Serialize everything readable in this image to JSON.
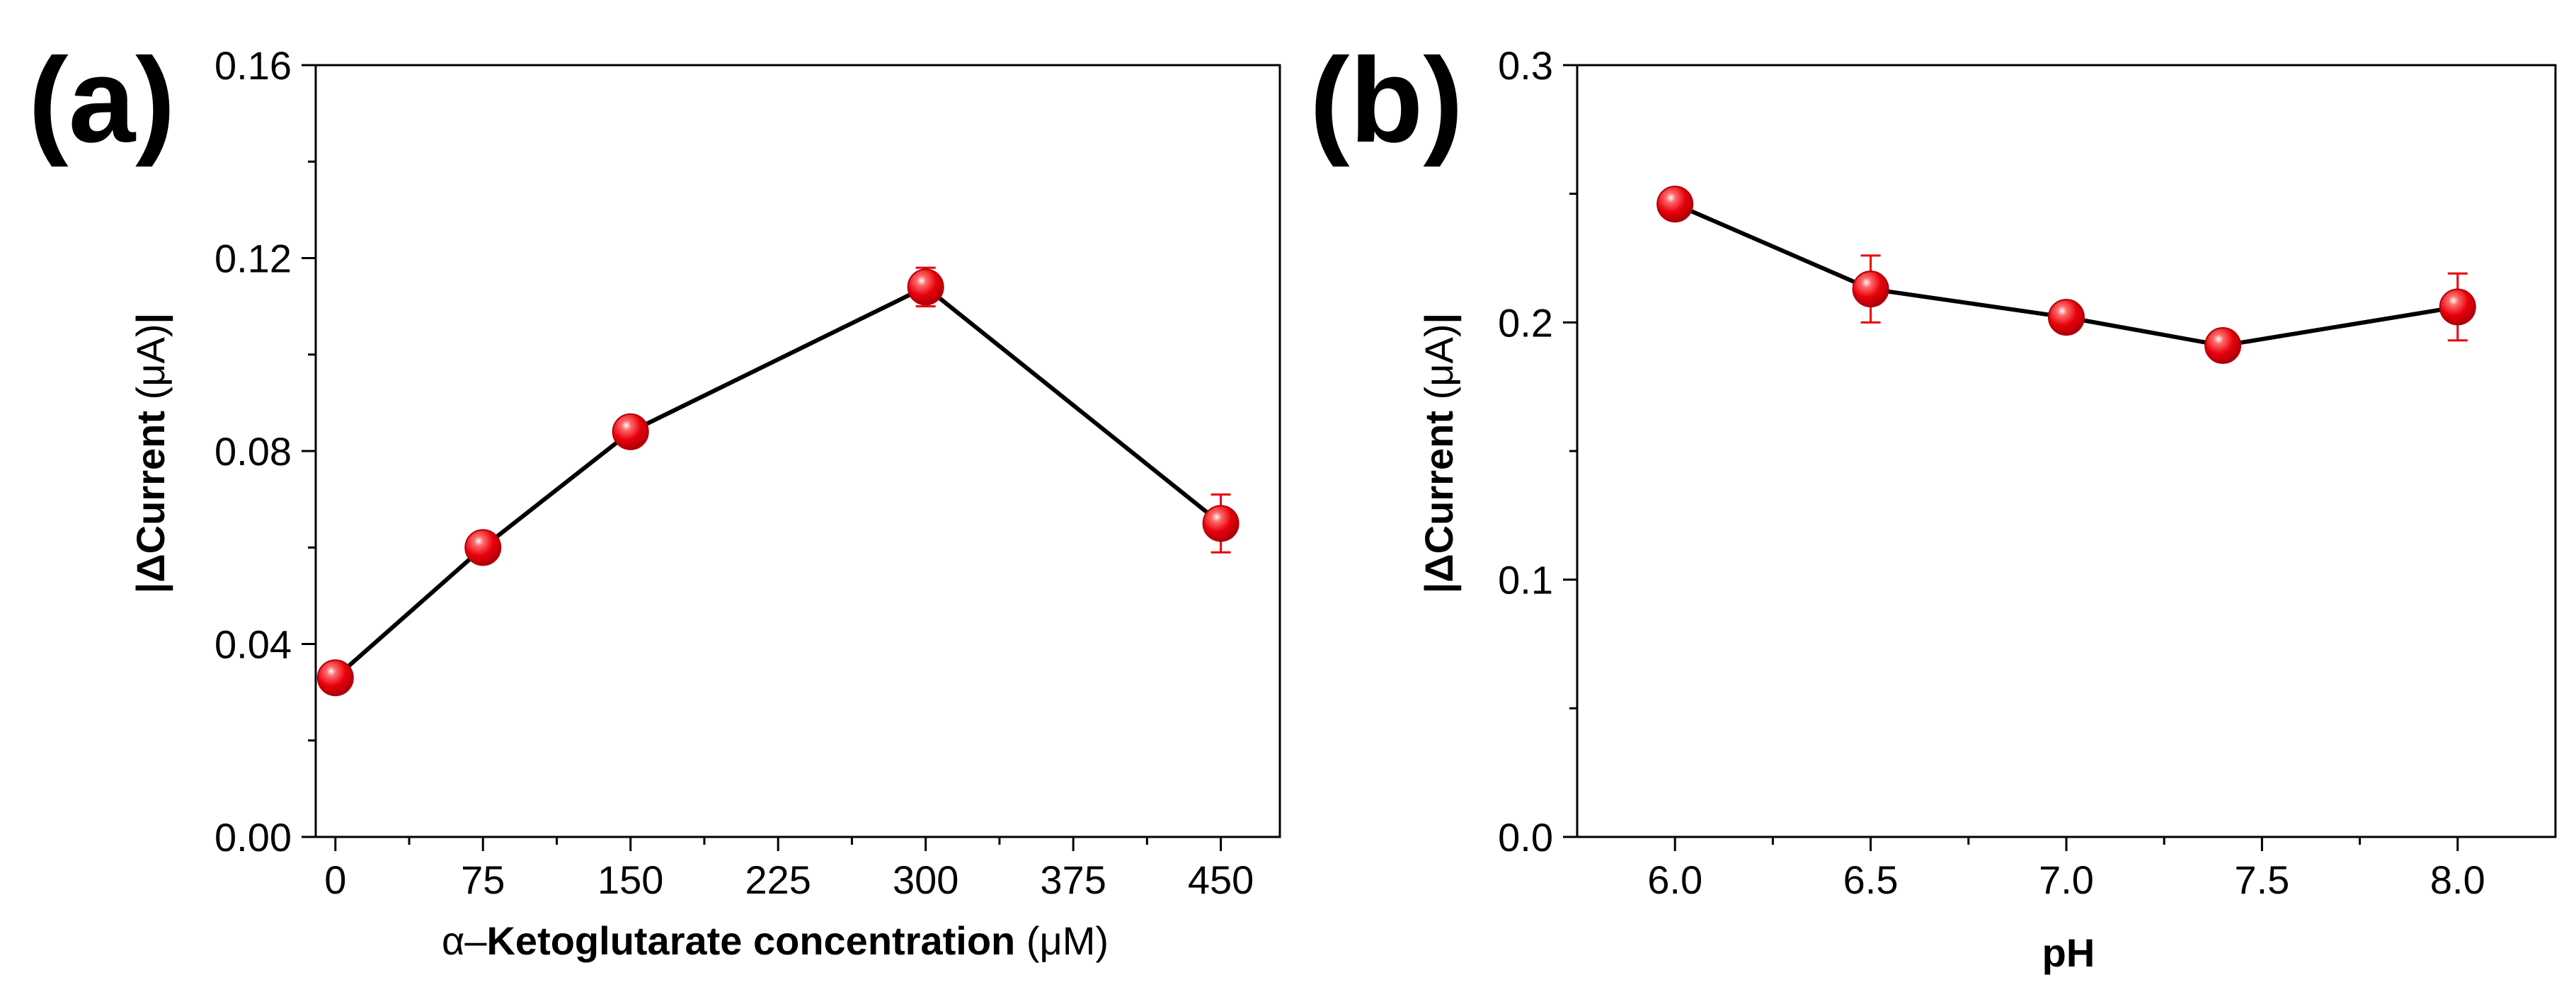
{
  "chart_data": [
    {
      "type": "line",
      "panel_label": "(a)",
      "xlabel": {
        "prefix": "α–",
        "main": "Ketoglutarate concentration ",
        "unit": "(μM)"
      },
      "ylabel": {
        "main": "|ΔCurrent ",
        "unit": "(μA)",
        "suffix": "|"
      },
      "xlim": [
        -10,
        480
      ],
      "ylim": [
        0,
        0.16
      ],
      "xticks": [
        0,
        75,
        150,
        225,
        300,
        375,
        450
      ],
      "xtick_labels": [
        "0",
        "75",
        "150",
        "225",
        "300",
        "375",
        "450"
      ],
      "yticks": [
        0,
        0.04,
        0.08,
        0.12,
        0.16
      ],
      "ytick_labels": [
        "0.00",
        "0.04",
        "0.08",
        "0.12",
        "0.16"
      ],
      "yminor": [
        0.02,
        0.06,
        0.1,
        0.14
      ],
      "series": [
        {
          "name": "ΔCurrent",
          "x": [
            0,
            75,
            150,
            300,
            450
          ],
          "y": [
            0.033,
            0.06,
            0.084,
            0.114,
            0.065
          ],
          "err": [
            0.0,
            0.0,
            0.0,
            0.004,
            0.006
          ]
        }
      ]
    },
    {
      "type": "line",
      "panel_label": "(b)",
      "xlabel": {
        "prefix": "",
        "main": "pH",
        "unit": ""
      },
      "ylabel": {
        "main": "|ΔCurrent ",
        "unit": "(μA)",
        "suffix": "|"
      },
      "xlim": [
        5.75,
        8.25
      ],
      "ylim": [
        0,
        0.3
      ],
      "xticks": [
        6.0,
        6.5,
        7.0,
        7.5,
        8.0
      ],
      "xtick_labels": [
        "6.0",
        "6.5",
        "7.0",
        "7.5",
        "8.0"
      ],
      "yticks": [
        0,
        0.1,
        0.2,
        0.3
      ],
      "ytick_labels": [
        "0.0",
        "0.1",
        "0.2",
        "0.3"
      ],
      "yminor": [
        0.05,
        0.15,
        0.25
      ],
      "series": [
        {
          "name": "ΔCurrent",
          "x": [
            6.0,
            6.5,
            7.0,
            7.4,
            8.0
          ],
          "y": [
            0.246,
            0.213,
            0.202,
            0.191,
            0.206
          ],
          "err": [
            0.0,
            0.013,
            0.0,
            0.0,
            0.013
          ]
        }
      ]
    }
  ],
  "colors": {
    "marker": "#e8000b",
    "marker_dark": "#b00008",
    "highlight": "#ffffff",
    "line": "#000000",
    "errorbar": "#e8000b"
  }
}
